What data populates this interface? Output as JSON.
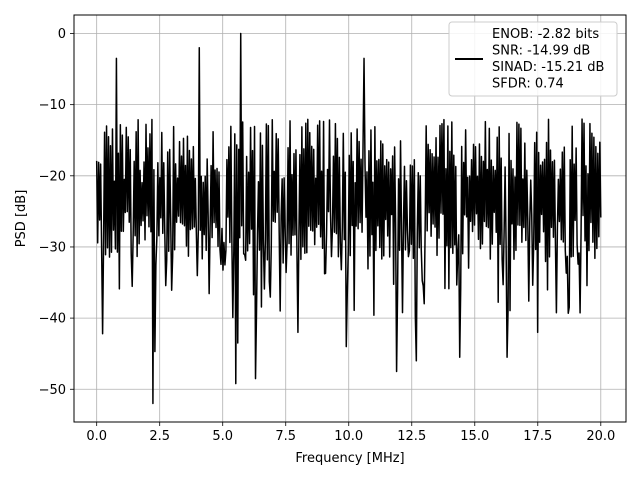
{
  "chart_data": {
    "type": "line",
    "title": "",
    "xlabel": "Frequency [MHz]",
    "ylabel": "PSD [dB]",
    "xlim": [
      -0.9,
      21.0
    ],
    "ylim": [
      -54.6,
      2.6
    ],
    "xticks": [
      0.0,
      2.5,
      5.0,
      7.5,
      10.0,
      12.5,
      15.0,
      17.5,
      20.0
    ],
    "xtick_labels": [
      "0.0",
      "2.5",
      "5.0",
      "7.5",
      "10.0",
      "12.5",
      "15.0",
      "17.5",
      "20.0"
    ],
    "yticks": [
      0,
      -10,
      -20,
      -30,
      -40,
      -50
    ],
    "ytick_labels": [
      "0",
      "−10",
      "−20",
      "−30",
      "−40",
      "−50"
    ],
    "grid": true,
    "legend_position": "upper-right",
    "series_color": "#000000",
    "legend_lines": [
      "ENOB: -2.82 bits",
      "SNR: -14.99 dB",
      "SINAD: -15.21 dB",
      "SFDR: 0.74"
    ],
    "series": [
      {
        "x_start": 0.0,
        "x_end": 20.0,
        "num_points": 512,
        "base_level_db": -22,
        "spikes": [
          {
            "x": 0.78,
            "y": -3.5
          },
          {
            "x": 4.06,
            "y": -2.0
          },
          {
            "x": 5.7,
            "y": 0.0
          },
          {
            "x": 10.6,
            "y": -3.5
          },
          {
            "x": 2.23,
            "y": -52.0
          },
          {
            "x": 2.31,
            "y": -44.7
          },
          {
            "x": 5.5,
            "y": -49.2
          },
          {
            "x": 6.3,
            "y": -48.5
          },
          {
            "x": 11.9,
            "y": -47.5
          },
          {
            "x": 12.7,
            "y": -46.0
          },
          {
            "x": 14.4,
            "y": -45.5
          },
          {
            "x": 16.3,
            "y": -45.5
          },
          {
            "x": 5.6,
            "y": -43.5
          },
          {
            "x": 8.0,
            "y": -42.0
          },
          {
            "x": 0.25,
            "y": -42.2
          },
          {
            "x": 9.9,
            "y": -44.0
          },
          {
            "x": 17.5,
            "y": -42.0
          }
        ]
      }
    ]
  }
}
